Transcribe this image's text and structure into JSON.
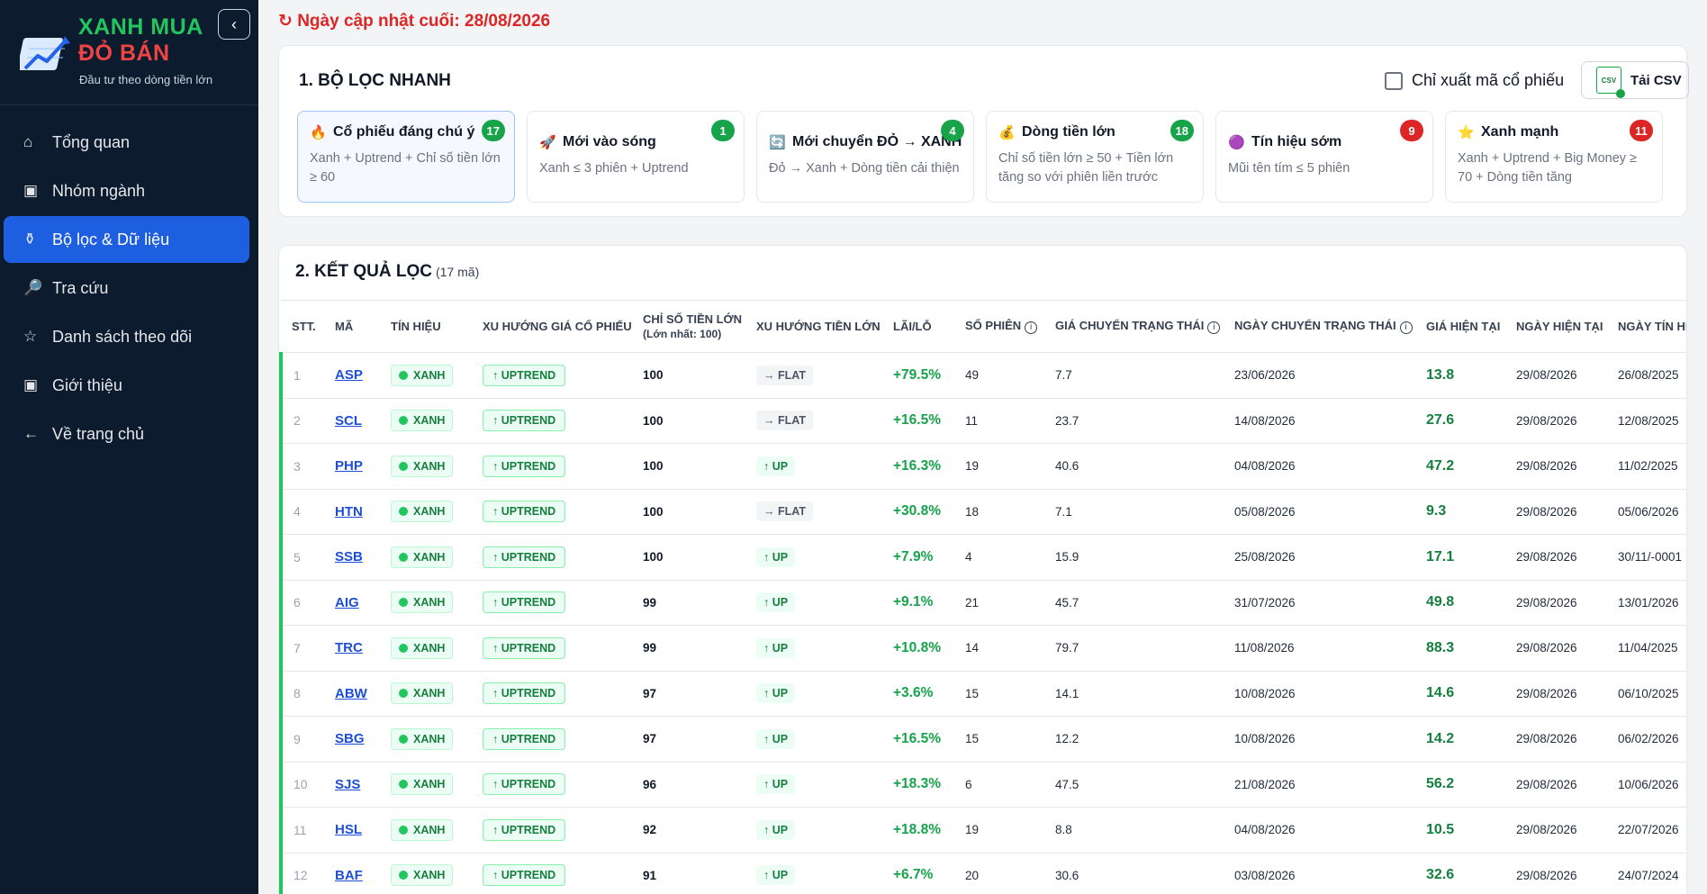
{
  "brand": {
    "line1": "XANH MUA",
    "line2": "ĐỎ BÁN",
    "tagline": "Đầu tư theo dòng tiền lớn",
    "collapse": "‹"
  },
  "nav": [
    {
      "icon": "⌂",
      "label": "Tổng quan"
    },
    {
      "icon": "▣",
      "label": "Nhóm ngành"
    },
    {
      "icon": "⚱",
      "label": "Bộ lọc & Dữ liệu"
    },
    {
      "icon": "🔎",
      "label": "Tra cứu"
    },
    {
      "icon": "☆",
      "label": "Danh sách theo dõi"
    },
    {
      "icon": "▣",
      "label": "Giới thiệu"
    },
    {
      "icon": "←",
      "label": "Về trang chủ"
    }
  ],
  "updated": "↻ Ngày cập nhật cuối: 28/08/2026",
  "filter_section": {
    "title": "1. BỘ LỌC NHANH",
    "export_label": "Chỉ xuất mã cổ phiếu",
    "csv_label": "Tải CSV",
    "csv_icon_text": "CSV",
    "filters": [
      {
        "emoji": "🔥",
        "title": "Cổ phiếu đáng chú ý",
        "desc": "Xanh + Uptrend + Chỉ số tiền lớn ≥ 60",
        "count": "17",
        "color": "green"
      },
      {
        "emoji": "🚀",
        "title": "Mới vào sóng",
        "desc": "Xanh ≤ 3 phiên + Uptrend",
        "count": "1",
        "color": "green"
      },
      {
        "emoji": "🔄",
        "title": "Mới chuyển ĐỎ → XANH",
        "desc": "Đỏ → Xanh + Dòng tiền cải thiện",
        "count": "4",
        "color": "green"
      },
      {
        "emoji": "💰",
        "title": "Dòng tiền lớn",
        "desc": "Chỉ số tiền lớn ≥ 50 + Tiền lớn tăng so với phiên liền trước",
        "count": "18",
        "color": "green"
      },
      {
        "emoji": "🟣",
        "title": "Tín hiệu sớm",
        "desc": "Mũi tên tím ≤ 5 phiên",
        "count": "9",
        "color": "red"
      },
      {
        "emoji": "⭐",
        "title": "Xanh mạnh",
        "desc": "Xanh + Uptrend + Big Money ≥ 70 + Dòng tiền tăng",
        "count": "11",
        "color": "red"
      }
    ]
  },
  "results": {
    "title": "2. KẾT QUẢ LỌC",
    "count_label": "(17 mã)",
    "headers": {
      "stt": "STT.",
      "ma": "MÃ",
      "tin_hieu": "TÍN HIỆU",
      "xu_huong_gia": "XU HƯỚNG GIÁ CỔ PHIẾU",
      "chi_so": "CHỈ SỐ TIỀN LỚN",
      "chi_so_sub": "(Lớn nhất: 100)",
      "xu_huong_tien": "XU HƯỚNG TIỀN LỚN",
      "lai_lo": "LÃI/LỖ",
      "so_phien": "SỐ PHIÊN",
      "gia_chuyen": "GIÁ CHUYỂN TRẠNG THÁI",
      "ngay_chuyen": "NGÀY CHUYỂN TRẠNG THÁI",
      "gia_hien_tai": "GIÁ HIỆN TẠI",
      "ngay_hien_tai": "NGÀY HIỆN TẠI",
      "ngay_tin_hieu": "NGÀY TÍN HI"
    },
    "rows": [
      {
        "stt": "1",
        "ma": "ASP",
        "signal": "XANH",
        "trend": "↑ UPTREND",
        "score": "100",
        "money": "→ FLAT",
        "money_type": "flat",
        "pnl": "+79.5%",
        "sessions": "49",
        "switch_price": "7.7",
        "switch_date": "23/06/2026",
        "price": "13.8",
        "cur_date": "29/08/2026",
        "sig_date": "26/08/2025"
      },
      {
        "stt": "2",
        "ma": "SCL",
        "signal": "XANH",
        "trend": "↑ UPTREND",
        "score": "100",
        "money": "→ FLAT",
        "money_type": "flat",
        "pnl": "+16.5%",
        "sessions": "11",
        "switch_price": "23.7",
        "switch_date": "14/08/2026",
        "price": "27.6",
        "cur_date": "29/08/2026",
        "sig_date": "12/08/2025"
      },
      {
        "stt": "3",
        "ma": "PHP",
        "signal": "XANH",
        "trend": "↑ UPTREND",
        "score": "100",
        "money": "↑ UP",
        "money_type": "up",
        "pnl": "+16.3%",
        "sessions": "19",
        "switch_price": "40.6",
        "switch_date": "04/08/2026",
        "price": "47.2",
        "cur_date": "29/08/2026",
        "sig_date": "11/02/2025"
      },
      {
        "stt": "4",
        "ma": "HTN",
        "signal": "XANH",
        "trend": "↑ UPTREND",
        "score": "100",
        "money": "→ FLAT",
        "money_type": "flat",
        "pnl": "+30.8%",
        "sessions": "18",
        "switch_price": "7.1",
        "switch_date": "05/08/2026",
        "price": "9.3",
        "cur_date": "29/08/2026",
        "sig_date": "05/06/2026"
      },
      {
        "stt": "5",
        "ma": "SSB",
        "signal": "XANH",
        "trend": "↑ UPTREND",
        "score": "100",
        "money": "↑ UP",
        "money_type": "up",
        "pnl": "+7.9%",
        "sessions": "4",
        "switch_price": "15.9",
        "switch_date": "25/08/2026",
        "price": "17.1",
        "cur_date": "29/08/2026",
        "sig_date": "30/11/-0001"
      },
      {
        "stt": "6",
        "ma": "AIG",
        "signal": "XANH",
        "trend": "↑ UPTREND",
        "score": "99",
        "money": "↑ UP",
        "money_type": "up",
        "pnl": "+9.1%",
        "sessions": "21",
        "switch_price": "45.7",
        "switch_date": "31/07/2026",
        "price": "49.8",
        "cur_date": "29/08/2026",
        "sig_date": "13/01/2026"
      },
      {
        "stt": "7",
        "ma": "TRC",
        "signal": "XANH",
        "trend": "↑ UPTREND",
        "score": "99",
        "money": "↑ UP",
        "money_type": "up",
        "pnl": "+10.8%",
        "sessions": "14",
        "switch_price": "79.7",
        "switch_date": "11/08/2026",
        "price": "88.3",
        "cur_date": "29/08/2026",
        "sig_date": "11/04/2025"
      },
      {
        "stt": "8",
        "ma": "ABW",
        "signal": "XANH",
        "trend": "↑ UPTREND",
        "score": "97",
        "money": "↑ UP",
        "money_type": "up",
        "pnl": "+3.6%",
        "sessions": "15",
        "switch_price": "14.1",
        "switch_date": "10/08/2026",
        "price": "14.6",
        "cur_date": "29/08/2026",
        "sig_date": "06/10/2025"
      },
      {
        "stt": "9",
        "ma": "SBG",
        "signal": "XANH",
        "trend": "↑ UPTREND",
        "score": "97",
        "money": "↑ UP",
        "money_type": "up",
        "pnl": "+16.5%",
        "sessions": "15",
        "switch_price": "12.2",
        "switch_date": "10/08/2026",
        "price": "14.2",
        "cur_date": "29/08/2026",
        "sig_date": "06/02/2026"
      },
      {
        "stt": "10",
        "ma": "SJS",
        "signal": "XANH",
        "trend": "↑ UPTREND",
        "score": "96",
        "money": "↑ UP",
        "money_type": "up",
        "pnl": "+18.3%",
        "sessions": "6",
        "switch_price": "47.5",
        "switch_date": "21/08/2026",
        "price": "56.2",
        "cur_date": "29/08/2026",
        "sig_date": "10/06/2026"
      },
      {
        "stt": "11",
        "ma": "HSL",
        "signal": "XANH",
        "trend": "↑ UPTREND",
        "score": "92",
        "money": "↑ UP",
        "money_type": "up",
        "pnl": "+18.8%",
        "sessions": "19",
        "switch_price": "8.8",
        "switch_date": "04/08/2026",
        "price": "10.5",
        "cur_date": "29/08/2026",
        "sig_date": "22/07/2026"
      },
      {
        "stt": "12",
        "ma": "BAF",
        "signal": "XANH",
        "trend": "↑ UPTREND",
        "score": "91",
        "money": "↑ UP",
        "money_type": "up",
        "pnl": "+6.7%",
        "sessions": "20",
        "switch_price": "30.6",
        "switch_date": "03/08/2026",
        "price": "32.6",
        "cur_date": "29/08/2026",
        "sig_date": "24/07/2024"
      }
    ]
  }
}
